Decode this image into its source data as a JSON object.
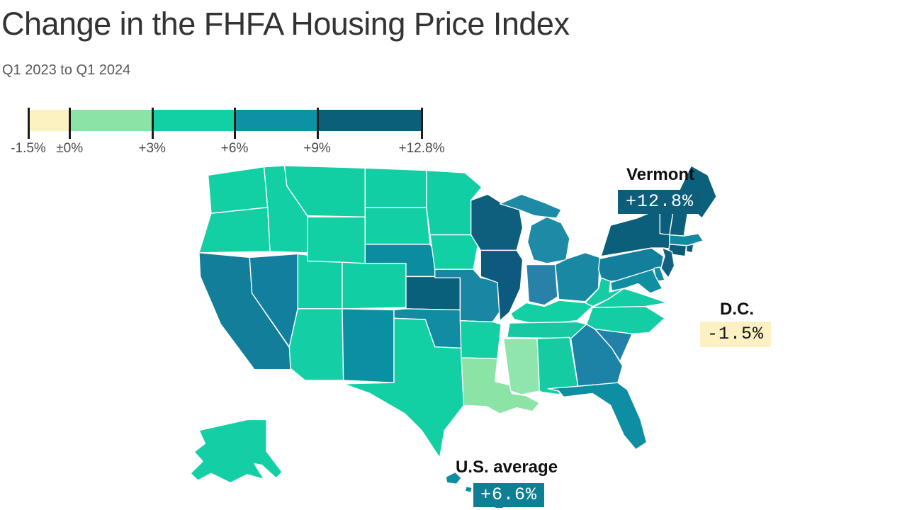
{
  "title": "Change in the FHFA Housing Price Index",
  "subtitle": "Q1 2023 to Q1 2024",
  "legend": {
    "stops": [
      {
        "label": "-1.5%",
        "value": -1.5
      },
      {
        "label": "±0%",
        "value": 0
      },
      {
        "label": "+3%",
        "value": 3
      },
      {
        "label": "+6%",
        "value": 6
      },
      {
        "label": "+9%",
        "value": 9
      },
      {
        "label": "+12.8%",
        "value": 12.8
      }
    ],
    "segment_colors": [
      "#FBF1C1",
      "#8CE3A6",
      "#12CFA4",
      "#0C92A2",
      "#0B5F79"
    ]
  },
  "callouts": [
    {
      "name": "Vermont",
      "value": "+12.8%",
      "badge_bg": "#0E5E7B",
      "badge_text_color": "#FFFFFF"
    },
    {
      "name": "D.C.",
      "value": "-1.5%",
      "badge_bg": "#FBF1C2",
      "badge_text_color": "#141414"
    },
    {
      "name": "U.S. average",
      "value": "+6.6%",
      "badge_bg": "#0F7F96",
      "badge_text_color": "#FFFFFF"
    }
  ],
  "chart_data": {
    "type": "choropleth",
    "title": "Change in the FHFA Housing Price Index",
    "subtitle": "Q1 2023 to Q1 2024",
    "unit": "%",
    "scale": {
      "min": -1.5,
      "max": 12.8,
      "ticks": [
        -1.5,
        0,
        3,
        6,
        9,
        12.8
      ],
      "legend_position": "top-left"
    },
    "labeled_values": [
      {
        "region": "Vermont",
        "value": 12.8
      },
      {
        "region": "D.C.",
        "value": -1.5
      },
      {
        "region": "U.S. average",
        "value": 6.6
      }
    ],
    "states": [
      {
        "id": "WA",
        "name": "Washington",
        "bucket": "+3% to +6%",
        "color": "#12CFA4"
      },
      {
        "id": "OR",
        "name": "Oregon",
        "bucket": "+3% to +6%",
        "color": "#12CFA4"
      },
      {
        "id": "CA",
        "name": "California",
        "bucket": "+6% to +9%",
        "color": "#127E9A"
      },
      {
        "id": "NV",
        "name": "Nevada",
        "bucket": "+6% to +9%",
        "color": "#117F9D"
      },
      {
        "id": "ID",
        "name": "Idaho",
        "bucket": "+3% to +6%",
        "color": "#13CFA5"
      },
      {
        "id": "MT",
        "name": "Montana",
        "bucket": "+3% to +6%",
        "color": "#12CEA3"
      },
      {
        "id": "WY",
        "name": "Wyoming",
        "bucket": "+3% to +6%",
        "color": "#13CFA4"
      },
      {
        "id": "UT",
        "name": "Utah",
        "bucket": "+3% to +6%",
        "color": "#12CEA4"
      },
      {
        "id": "CO",
        "name": "Colorado",
        "bucket": "+3% to +6%",
        "color": "#12CEA4"
      },
      {
        "id": "AZ",
        "name": "Arizona",
        "bucket": "+3% to +6%",
        "color": "#14CFA6"
      },
      {
        "id": "NM",
        "name": "New Mexico",
        "bucket": "+6% to +9%",
        "color": "#0B90A2"
      },
      {
        "id": "ND",
        "name": "North Dakota",
        "bucket": "+3% to +6%",
        "color": "#12CEA4"
      },
      {
        "id": "SD",
        "name": "South Dakota",
        "bucket": "+3% to +6%",
        "color": "#13CFA5"
      },
      {
        "id": "NE",
        "name": "Nebraska",
        "bucket": "+6% to +9%",
        "color": "#0B8C9F"
      },
      {
        "id": "KS",
        "name": "Kansas",
        "bucket": "+9% to +12.8%",
        "color": "#09607A"
      },
      {
        "id": "OK",
        "name": "Oklahoma",
        "bucket": "+6% to +9%",
        "color": "#128CA2"
      },
      {
        "id": "TX",
        "name": "Texas",
        "bucket": "+3% to +6%",
        "color": "#13CFA4"
      },
      {
        "id": "MN",
        "name": "Minnesota",
        "bucket": "+3% to +6%",
        "color": "#12CEA4"
      },
      {
        "id": "IA",
        "name": "Iowa",
        "bucket": "+3% to +6%",
        "color": "#12D0A6"
      },
      {
        "id": "MO",
        "name": "Missouri",
        "bucket": "+6% to +9%",
        "color": "#1986A4"
      },
      {
        "id": "AR",
        "name": "Arkansas",
        "bucket": "+3% to +6%",
        "color": "#13CFA4"
      },
      {
        "id": "LA",
        "name": "Louisiana",
        "bucket": "±0% to +3%",
        "color": "#8CE3A6"
      },
      {
        "id": "WI",
        "name": "Wisconsin",
        "bucket": "+9% to +12.8%",
        "color": "#0D5F7D"
      },
      {
        "id": "IL",
        "name": "Illinois",
        "bucket": "+9% to +12.8%",
        "color": "#0E5A7E"
      },
      {
        "id": "MS",
        "name": "Mississippi",
        "bucket": "±0% to +3%",
        "color": "#8FE5AC"
      },
      {
        "id": "MI",
        "name": "Michigan",
        "bucket": "+6% to +9%",
        "color": "#1E8AA6"
      },
      {
        "id": "IN",
        "name": "Indiana",
        "bucket": "+6% to +9%",
        "color": "#2881A8"
      },
      {
        "id": "OH",
        "name": "Ohio",
        "bucket": "+6% to +9%",
        "color": "#1988A2"
      },
      {
        "id": "KY",
        "name": "Kentucky",
        "bucket": "+3% to +6%",
        "color": "#13CFA4"
      },
      {
        "id": "TN",
        "name": "Tennessee",
        "bucket": "+3% to +6%",
        "color": "#16C9A2"
      },
      {
        "id": "AL",
        "name": "Alabama",
        "bucket": "+3% to +6%",
        "color": "#14CBA2"
      },
      {
        "id": "GA",
        "name": "Georgia",
        "bucket": "+6% to +9%",
        "color": "#1D83A6"
      },
      {
        "id": "FL",
        "name": "Florida",
        "bucket": "+6% to +9%",
        "color": "#0E8EA2"
      },
      {
        "id": "SC",
        "name": "South Carolina",
        "bucket": "+6% to +9%",
        "color": "#2280A9"
      },
      {
        "id": "NC",
        "name": "North Carolina",
        "bucket": "+3% to +6%",
        "color": "#15CDA5"
      },
      {
        "id": "VA",
        "name": "Virginia",
        "bucket": "+3% to +6%",
        "color": "#15CDA5"
      },
      {
        "id": "WV",
        "name": "West Virginia",
        "bucket": "+3% to +6%",
        "color": "#17CBA4"
      },
      {
        "id": "PA",
        "name": "Pennsylvania",
        "bucket": "+6% to +9%",
        "color": "#137F9C"
      },
      {
        "id": "NY",
        "name": "New York",
        "bucket": "+9% to +12.8%",
        "color": "#0C5F7B"
      },
      {
        "id": "NJ",
        "name": "New Jersey",
        "bucket": "+9% to +12.8%",
        "color": "#115F82"
      },
      {
        "id": "MD",
        "name": "Maryland",
        "bucket": "+6% to +9%",
        "color": "#0F8FA0"
      },
      {
        "id": "DE",
        "name": "Delaware",
        "bucket": "+6% to +9%",
        "color": "#0F8FA0"
      },
      {
        "id": "CT",
        "name": "Connecticut",
        "bucket": "+9% to +12.8%",
        "color": "#0A5D77"
      },
      {
        "id": "RI",
        "name": "Rhode Island",
        "bucket": "+9% to +12.8%",
        "color": "#0B5E79"
      },
      {
        "id": "MA",
        "name": "Massachusetts",
        "bucket": "+6% to +9%",
        "color": "#1489A1"
      },
      {
        "id": "VT",
        "name": "Vermont",
        "bucket": "+9% to +12.8%",
        "color": "#0B5E79"
      },
      {
        "id": "NH",
        "name": "New Hampshire",
        "bucket": "+9% to +12.8%",
        "color": "#0C5F7A"
      },
      {
        "id": "ME",
        "name": "Maine",
        "bucket": "+9% to +12.8%",
        "color": "#0B607B"
      },
      {
        "id": "AK",
        "name": "Alaska",
        "bucket": "+3% to +6%",
        "color": "#14CFA5"
      },
      {
        "id": "HI",
        "name": "Hawaii",
        "bucket": "+6% to +9%",
        "color": "#0E8CA0"
      }
    ]
  }
}
